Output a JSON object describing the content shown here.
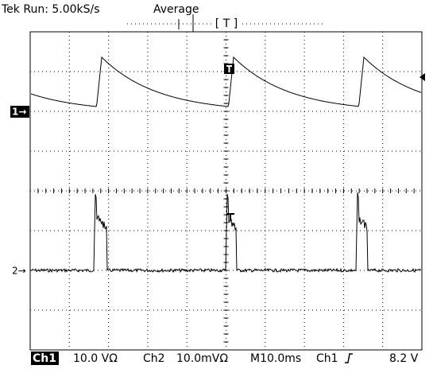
{
  "header": {
    "status": "Tek Run: 5.00kS/s",
    "mode": "Average",
    "trigger_position": "[ T ]"
  },
  "markers": {
    "ch1": "1→",
    "ch2": "2→"
  },
  "status_bar": {
    "ch1_label": "Ch1",
    "ch1_scale": "10.0 VΩ",
    "ch2_label": "Ch2",
    "ch2_scale": "10.0mVΩ",
    "timebase": "M10.0ms",
    "trigger_source": "Ch1",
    "trigger_level": "8.2 V"
  }
}
